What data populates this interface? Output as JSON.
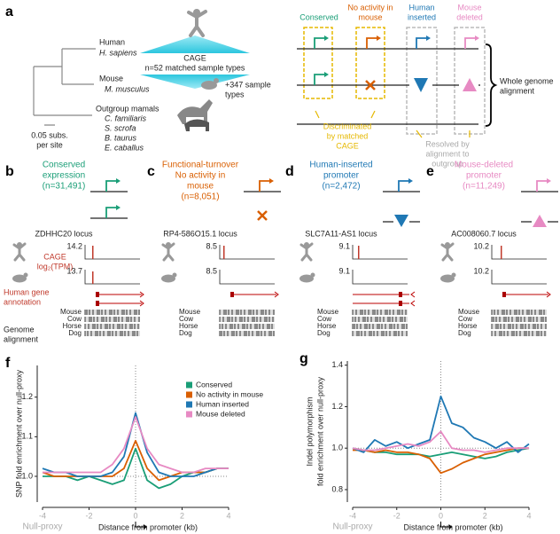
{
  "panel_a": {
    "label": "a",
    "tree": [
      {
        "name": "Human",
        "species": [
          "H. sapiens"
        ]
      },
      {
        "name": "Mouse",
        "species": [
          "M. musculus"
        ]
      },
      {
        "name": "Outgroup mamals",
        "species": [
          "C. familiaris",
          "S. scrofa",
          "B. taurus",
          "E. caballus"
        ]
      }
    ],
    "scale": [
      "0.05 subs.",
      "per site"
    ],
    "cage": [
      "CAGE",
      "n=52 matched sample types"
    ],
    "extra_samples": [
      "+347 sample",
      "types"
    ],
    "categories": [
      [
        "Conserved"
      ],
      [
        "No activity in",
        "mouse"
      ],
      [
        "Human",
        "inserted"
      ],
      [
        "Mouse",
        "deleted"
      ]
    ],
    "alignment": [
      "Whole genome",
      "alignment"
    ],
    "discriminated": [
      "Discriminated",
      "by matched",
      "CAGE"
    ],
    "resolved": [
      "Resolved by",
      "alignment to",
      "outgroup"
    ]
  },
  "track_labels": {
    "cage": "CAGE",
    "unit": "log₂(TPM)",
    "annotation": [
      "Human gene",
      "annotation"
    ],
    "alignment": [
      "Genome",
      "alignment"
    ]
  },
  "panels": [
    {
      "label": "b",
      "title": [
        "Conserved",
        "expression",
        "(n=31,491)"
      ],
      "locus": "ZDHHC20 locus",
      "tracks": [
        14.2,
        13.7
      ],
      "species": [
        "Mouse",
        "Cow",
        "Horse",
        "Dog"
      ]
    },
    {
      "label": "c",
      "title": [
        "Functional-turnover",
        "No activity in",
        "mouse",
        "(n=8,051)"
      ],
      "locus": "RP4-586O15.1 locus",
      "tracks": [
        8.5,
        8.5
      ],
      "species": [
        "Mouse",
        "Cow",
        "Horse",
        "Dog"
      ]
    },
    {
      "label": "d",
      "title": [
        "Human-inserted",
        "promoter",
        "(n=2,472)"
      ],
      "locus": "SLC7A11-AS1 locus",
      "tracks": [
        9.1,
        9.1
      ],
      "species": [
        "Mouse",
        "Cow",
        "Horse",
        "Dog"
      ]
    },
    {
      "label": "e",
      "title": [
        "Mouse-deleted",
        "promoter",
        "(n=11,249)"
      ],
      "locus": "AC008060.7 locus",
      "tracks": [
        10.2,
        10.2
      ],
      "species": [
        "Mouse",
        "Cow",
        "Horse",
        "Dog"
      ]
    }
  ],
  "chart_data": [
    {
      "type": "line",
      "label": "f",
      "ylabel": [
        "SNP fold enrichment over null-proxy"
      ],
      "xlabel": "Distance from promoter (kb)",
      "annotation": "Null-proxy",
      "x": [
        -4,
        -3.5,
        -3,
        -2.5,
        -2,
        -1.5,
        -1,
        -0.5,
        0,
        0.5,
        1,
        1.5,
        2,
        2.5,
        3,
        3.5,
        4
      ],
      "xlim": [
        -4,
        4
      ],
      "xticks": [
        -4,
        -2,
        0,
        2,
        4
      ],
      "ylim": [
        0.935,
        1.28
      ],
      "yticks": [
        {
          "value": 1,
          "label": "1.0"
        },
        1.1,
        1.2
      ],
      "legend": "upper right",
      "series": [
        {
          "name": "Conserved",
          "color": "#1a9e77",
          "values": [
            1.0,
            1.0,
            1.0,
            0.99,
            1.0,
            0.99,
            0.98,
            0.99,
            1.07,
            0.99,
            0.97,
            0.98,
            1.0,
            1.01,
            1.01,
            1.02,
            1.02
          ]
        },
        {
          "name": "No activity in mouse",
          "color": "#d95f02",
          "values": [
            1.01,
            1.0,
            1.0,
            1.0,
            1.0,
            1.0,
            1.0,
            1.02,
            1.09,
            1.02,
            0.99,
            1.0,
            1.01,
            1.01,
            1.01,
            1.02,
            1.02
          ]
        },
        {
          "name": "Human inserted",
          "color": "#1f78b4",
          "values": [
            1.02,
            1.01,
            1.01,
            1.0,
            1.0,
            1.0,
            1.01,
            1.05,
            1.16,
            1.06,
            1.01,
            1.0,
            1.0,
            1.0,
            1.01,
            1.02,
            1.02
          ]
        },
        {
          "name": "Mouse deleted",
          "color": "#e78ac3",
          "values": [
            1.01,
            1.01,
            1.01,
            1.01,
            1.01,
            1.01,
            1.03,
            1.07,
            1.15,
            1.07,
            1.03,
            1.02,
            1.01,
            1.01,
            1.02,
            1.02,
            1.02
          ]
        }
      ]
    },
    {
      "type": "line",
      "label": "g",
      "ylabel": [
        "Indel polymorphism",
        "fold enrichment over null-proxy"
      ],
      "xlabel": "Distance from promoter (kb)",
      "annotation": "Null-proxy",
      "x": [
        -4,
        -3.5,
        -3,
        -2.5,
        -2,
        -1.5,
        -1,
        -0.5,
        0,
        0.5,
        1,
        1.5,
        2,
        2.5,
        3,
        3.5,
        4
      ],
      "xlim": [
        -4,
        4
      ],
      "xticks": [
        -4,
        -2,
        0,
        2,
        4
      ],
      "ylim": [
        0.74,
        1.42
      ],
      "yticks": [
        0.8,
        {
          "value": 1,
          "label": "1.0"
        },
        1.2,
        1.4
      ],
      "series": [
        {
          "color": "#1a9e77",
          "values": [
            1.0,
            0.99,
            0.98,
            0.98,
            0.97,
            0.97,
            0.97,
            0.96,
            0.97,
            0.98,
            0.97,
            0.96,
            0.95,
            0.96,
            0.98,
            0.99,
            1.0
          ]
        },
        {
          "color": "#d95f02",
          "values": [
            0.99,
            0.99,
            0.98,
            0.99,
            0.98,
            0.98,
            0.97,
            0.95,
            0.88,
            0.9,
            0.93,
            0.95,
            0.97,
            0.98,
            0.99,
            1.0,
            1.0
          ]
        },
        {
          "color": "#1f78b4",
          "values": [
            1.0,
            0.98,
            1.04,
            1.01,
            1.03,
            1.0,
            1.02,
            1.04,
            1.25,
            1.12,
            1.1,
            1.05,
            1.03,
            1.0,
            1.03,
            0.98,
            1.02
          ]
        },
        {
          "color": "#e78ac3",
          "values": [
            1.0,
            0.99,
            0.99,
            1.0,
            1.01,
            1.02,
            1.01,
            1.03,
            1.08,
            1.0,
            0.99,
            0.99,
            0.98,
            0.99,
            1.0,
            1.0,
            1.0
          ]
        }
      ]
    }
  ]
}
